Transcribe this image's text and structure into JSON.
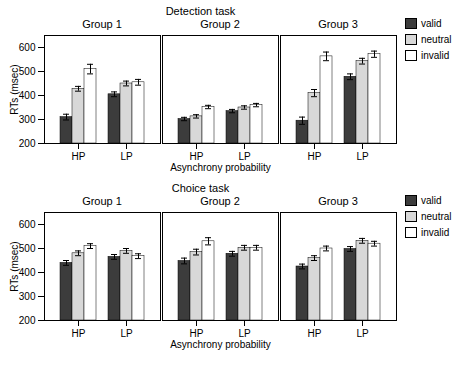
{
  "chart_data": [
    {
      "type": "bar",
      "title": "Detection task",
      "xlabel": "Asynchrony probability",
      "ylabel": "RTs (msec)",
      "ylim": [
        200,
        650
      ],
      "yticks": [
        200,
        300,
        400,
        500,
        600
      ],
      "legend": "right",
      "panels": [
        {
          "title": "Group 1",
          "categories": [
            "HP",
            "LP"
          ],
          "series": [
            {
              "name": "valid",
              "color": "#3c3c3c",
              "values": [
                310,
                405
              ],
              "errors": [
                12,
                10
              ]
            },
            {
              "name": "neutral",
              "color": "#d8d8d8",
              "values": [
                428,
                450
              ],
              "errors": [
                10,
                10
              ]
            },
            {
              "name": "invalid",
              "color": "#ffffff",
              "values": [
                510,
                455
              ],
              "errors": [
                20,
                12
              ]
            }
          ]
        },
        {
          "title": "Group 2",
          "categories": [
            "HP",
            "LP"
          ],
          "series": [
            {
              "name": "valid",
              "color": "#3c3c3c",
              "values": [
                302,
                335
              ],
              "errors": [
                7,
                7
              ]
            },
            {
              "name": "neutral",
              "color": "#d8d8d8",
              "values": [
                313,
                350
              ],
              "errors": [
                7,
                7
              ]
            },
            {
              "name": "invalid",
              "color": "#ffffff",
              "values": [
                352,
                360
              ],
              "errors": [
                7,
                7
              ]
            }
          ]
        },
        {
          "title": "Group 3",
          "categories": [
            "HP",
            "LP"
          ],
          "series": [
            {
              "name": "valid",
              "color": "#3c3c3c",
              "values": [
                295,
                478
              ],
              "errors": [
                15,
                12
              ]
            },
            {
              "name": "neutral",
              "color": "#d8d8d8",
              "values": [
                410,
                543
              ],
              "errors": [
                15,
                12
              ]
            },
            {
              "name": "invalid",
              "color": "#ffffff",
              "values": [
                563,
                572
              ],
              "errors": [
                18,
                13
              ]
            }
          ]
        }
      ]
    },
    {
      "type": "bar",
      "title": "Choice  task",
      "xlabel": "Asynchrony probability",
      "ylabel": "RTs (msec)",
      "ylim": [
        200,
        650
      ],
      "yticks": [
        200,
        300,
        400,
        500,
        600
      ],
      "legend": "right",
      "panels": [
        {
          "title": "Group 1",
          "categories": [
            "HP",
            "LP"
          ],
          "series": [
            {
              "name": "valid",
              "color": "#3c3c3c",
              "values": [
                440,
                465
              ],
              "errors": [
                10,
                10
              ]
            },
            {
              "name": "neutral",
              "color": "#d8d8d8",
              "values": [
                480,
                490
              ],
              "errors": [
                10,
                10
              ]
            },
            {
              "name": "invalid",
              "color": "#ffffff",
              "values": [
                510,
                468
              ],
              "errors": [
                10,
                10
              ]
            }
          ]
        },
        {
          "title": "Group 2",
          "categories": [
            "HP",
            "LP"
          ],
          "series": [
            {
              "name": "valid",
              "color": "#3c3c3c",
              "values": [
                448,
                478
              ],
              "errors": [
                12,
                10
              ]
            },
            {
              "name": "neutral",
              "color": "#d8d8d8",
              "values": [
                485,
                503
              ],
              "errors": [
                12,
                10
              ]
            },
            {
              "name": "invalid",
              "color": "#ffffff",
              "values": [
                530,
                503
              ],
              "errors": [
                15,
                10
              ]
            }
          ]
        },
        {
          "title": "Group 3",
          "categories": [
            "HP",
            "LP"
          ],
          "series": [
            {
              "name": "valid",
              "color": "#3c3c3c",
              "values": [
                425,
                498
              ],
              "errors": [
                10,
                10
              ]
            },
            {
              "name": "neutral",
              "color": "#d8d8d8",
              "values": [
                460,
                532
              ],
              "errors": [
                10,
                10
              ]
            },
            {
              "name": "invalid",
              "color": "#ffffff",
              "values": [
                500,
                520
              ],
              "errors": [
                10,
                10
              ]
            }
          ]
        }
      ]
    }
  ]
}
